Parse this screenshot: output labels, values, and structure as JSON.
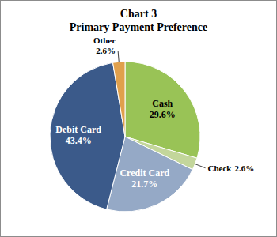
{
  "chart_data": {
    "type": "pie",
    "title": "Chart 3",
    "subtitle": "Primary Payment Preference",
    "categories": [
      "Cash",
      "Check",
      "Credit Card",
      "Debit Card",
      "Other"
    ],
    "values": [
      29.6,
      2.6,
      21.7,
      43.4,
      2.6
    ],
    "value_labels": [
      "29.6%",
      "2.6%",
      "21.7%",
      "43.4%",
      "2.6%"
    ],
    "colors": [
      "#99c356",
      "#c3d69b",
      "#95a9c6",
      "#3b5a8a",
      "#e0a04c"
    ],
    "data_labels": true
  }
}
